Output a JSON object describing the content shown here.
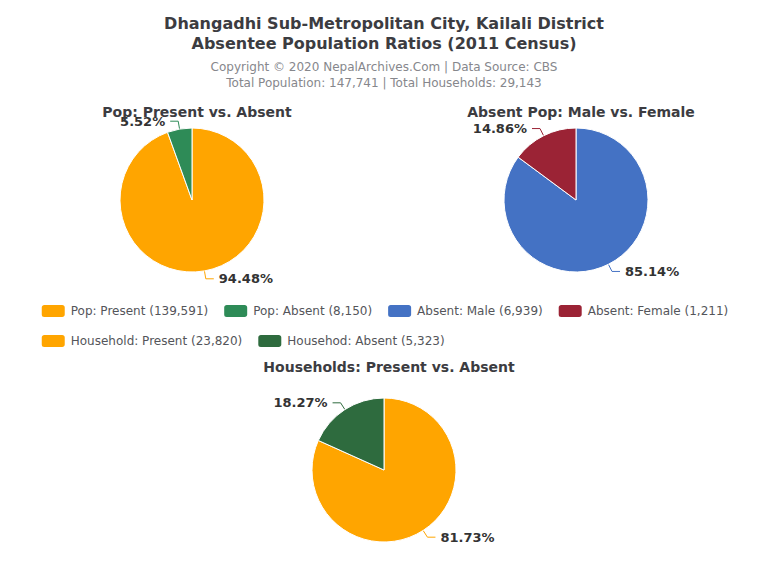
{
  "title": [
    "Dhangadhi Sub-Metropolitan City, Kailali District",
    "Absentee Population Ratios (2011 Census)"
  ],
  "subtitle": [
    "Copyright © 2020 NepalArchives.Com | Data Source: CBS",
    "Total Population: 147,741 | Total Households: 29,143"
  ],
  "legend": "center",
  "chart_data": [
    {
      "type": "pie",
      "title": "Pop: Present vs. Absent",
      "categories": [
        "Pop: Present (139,591)",
        "Pop: Absent (8,150)"
      ],
      "values": [
        94.48,
        5.52
      ],
      "value_labels": [
        "94.48%",
        "5.52%"
      ],
      "colors": [
        "#FFA500",
        "#2E8B57"
      ],
      "data_labels": true
    },
    {
      "type": "pie",
      "title": "Absent Pop: Male vs. Female",
      "categories": [
        "Absent: Male (6,939)",
        "Absent: Female (1,211)"
      ],
      "values": [
        85.14,
        14.86
      ],
      "value_labels": [
        "85.14%",
        "14.86%"
      ],
      "colors": [
        "#4472C4",
        "#9B2335"
      ],
      "data_labels": true
    },
    {
      "type": "pie",
      "title": "Households: Present vs. Absent",
      "categories": [
        "Household: Present (23,820)",
        "Househod: Absent (5,323)"
      ],
      "values": [
        81.73,
        18.27
      ],
      "value_labels": [
        "81.73%",
        "18.27%"
      ],
      "colors": [
        "#FFA500",
        "#2E6B3E"
      ],
      "data_labels": true
    }
  ]
}
